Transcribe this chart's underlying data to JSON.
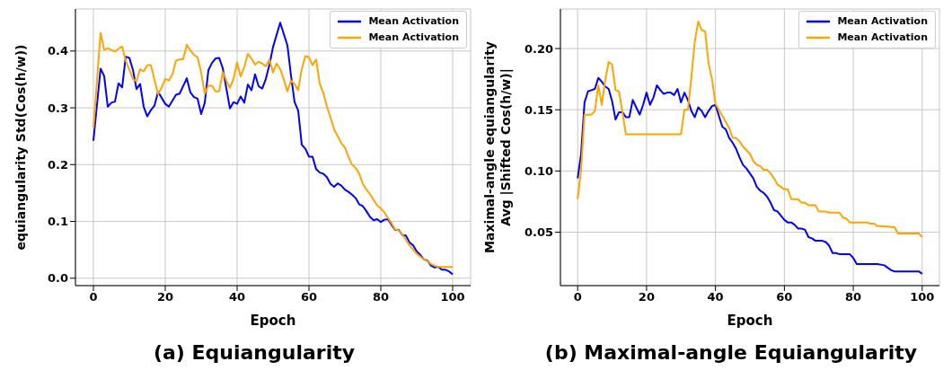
{
  "chart_data": [
    {
      "type": "line",
      "title": "(a) Equiangularity",
      "xlabel": "Epoch",
      "ylabel": "equiangularity Std(Cos(h/w))",
      "xlim": [
        -5,
        105
      ],
      "xticks": [
        0,
        20,
        40,
        60,
        80,
        100
      ],
      "ylim": [
        -0.013,
        0.474
      ],
      "yticks": [
        {
          "value": 0,
          "label": "0.0"
        },
        {
          "value": 0.1,
          "label": "0.1"
        },
        {
          "value": 0.2,
          "label": "0.2"
        },
        {
          "value": 0.3,
          "label": "0.3"
        },
        {
          "value": 0.4,
          "label": "0.4"
        }
      ],
      "grid": true,
      "legend": "top right",
      "line_style": "solid",
      "series": [
        {
          "name": "Mean Activation",
          "color": "#0000ff",
          "x": [
            0,
            2,
            3,
            4,
            5,
            6,
            7,
            8,
            9,
            10,
            11,
            12,
            13,
            14,
            15,
            16,
            17,
            18,
            20,
            21,
            23,
            24,
            26,
            27,
            28,
            29,
            30,
            31,
            32,
            33,
            34,
            35,
            36,
            38,
            39,
            40,
            41,
            42,
            43,
            44,
            45,
            46,
            47,
            48,
            49,
            50,
            52,
            54,
            55,
            56,
            57,
            58,
            59,
            60,
            61,
            62,
            63,
            64,
            65,
            66,
            67,
            68,
            69,
            70,
            71,
            72,
            73,
            74,
            75,
            76,
            77,
            78,
            79,
            80,
            81,
            82,
            83,
            84,
            85,
            86,
            87,
            88,
            89,
            90,
            91,
            92,
            93,
            94,
            95,
            96,
            97,
            98,
            99,
            100
          ],
          "values": [
            0.242,
            0.369,
            0.356,
            0.302,
            0.309,
            0.311,
            0.343,
            0.336,
            0.39,
            0.388,
            0.367,
            0.333,
            0.342,
            0.302,
            0.285,
            0.296,
            0.304,
            0.328,
            0.307,
            0.302,
            0.323,
            0.325,
            0.352,
            0.327,
            0.319,
            0.316,
            0.289,
            0.309,
            0.366,
            0.379,
            0.387,
            0.388,
            0.37,
            0.299,
            0.31,
            0.307,
            0.32,
            0.309,
            0.341,
            0.331,
            0.359,
            0.338,
            0.334,
            0.351,
            0.376,
            0.407,
            0.45,
            0.41,
            0.357,
            0.31,
            0.295,
            0.235,
            0.228,
            0.214,
            0.214,
            0.192,
            0.186,
            0.184,
            0.178,
            0.166,
            0.161,
            0.167,
            0.163,
            0.156,
            0.152,
            0.147,
            0.141,
            0.13,
            0.127,
            0.118,
            0.108,
            0.102,
            0.104,
            0.099,
            0.103,
            0.104,
            0.094,
            0.085,
            0.085,
            0.076,
            0.075,
            0.063,
            0.058,
            0.047,
            0.041,
            0.033,
            0.031,
            0.022,
            0.019,
            0.02,
            0.015,
            0.015,
            0.012,
            0.007
          ]
        },
        {
          "name": "Mean Activation",
          "color": "#ffa500",
          "x": [
            0,
            2,
            3,
            4,
            5,
            6,
            7,
            8,
            9,
            10,
            11,
            12,
            13,
            14,
            15,
            16,
            17,
            18,
            19,
            20,
            21,
            22,
            23,
            24,
            25,
            26,
            27,
            28,
            29,
            30,
            31,
            32,
            33,
            34,
            35,
            36,
            37,
            38,
            39,
            40,
            41,
            42,
            43,
            44,
            45,
            46,
            47,
            48,
            49,
            50,
            51,
            52,
            53,
            54,
            55,
            56,
            57,
            58,
            59,
            60,
            61,
            62,
            63,
            64,
            65,
            66,
            67,
            69,
            70,
            71,
            72,
            73,
            74,
            75,
            76,
            77,
            78,
            79,
            80,
            81,
            82,
            83,
            84,
            85,
            86,
            87,
            88,
            89,
            90,
            91,
            92,
            93,
            94,
            95,
            96,
            98,
            100
          ],
          "values": [
            0.264,
            0.432,
            0.402,
            0.405,
            0.402,
            0.399,
            0.404,
            0.408,
            0.383,
            0.367,
            0.351,
            0.347,
            0.368,
            0.364,
            0.375,
            0.375,
            0.35,
            0.324,
            0.336,
            0.351,
            0.348,
            0.359,
            0.383,
            0.385,
            0.386,
            0.411,
            0.401,
            0.393,
            0.389,
            0.362,
            0.325,
            0.339,
            0.339,
            0.329,
            0.329,
            0.363,
            0.348,
            0.335,
            0.351,
            0.38,
            0.355,
            0.372,
            0.395,
            0.387,
            0.376,
            0.381,
            0.378,
            0.373,
            0.385,
            0.362,
            0.378,
            0.368,
            0.35,
            0.329,
            0.348,
            0.342,
            0.331,
            0.368,
            0.391,
            0.389,
            0.375,
            0.385,
            0.343,
            0.326,
            0.302,
            0.283,
            0.262,
            0.238,
            0.23,
            0.214,
            0.2,
            0.194,
            0.184,
            0.166,
            0.156,
            0.148,
            0.138,
            0.128,
            0.123,
            0.116,
            0.106,
            0.097,
            0.086,
            0.084,
            0.077,
            0.068,
            0.058,
            0.051,
            0.043,
            0.038,
            0.033,
            0.03,
            0.025,
            0.022,
            0.02,
            0.02,
            0.02
          ]
        }
      ]
    },
    {
      "type": "line",
      "title": "(b) Maximal-angle Equiangularity",
      "xlabel": "Epoch",
      "ylabel": "Maximal-angle equiangularity\nAvg |Shifted Cos(h/w)|",
      "xlim": [
        -5,
        105
      ],
      "xticks": [
        0,
        20,
        40,
        60,
        80,
        100
      ],
      "ylim": [
        0.0064,
        0.2323
      ],
      "yticks": [
        {
          "value": 0.05,
          "label": "0.05"
        },
        {
          "value": 0.1,
          "label": "0.10"
        },
        {
          "value": 0.15,
          "label": "0.15"
        },
        {
          "value": 0.2,
          "label": "0.20"
        }
      ],
      "grid": true,
      "legend": "top right",
      "line_style": "solid",
      "series": [
        {
          "name": "Mean Activation",
          "color": "#0000ff",
          "x": [
            0,
            1,
            2,
            3,
            4,
            5,
            6,
            7,
            8,
            9,
            10,
            11,
            12,
            13,
            14,
            15,
            16,
            17,
            18,
            19,
            20,
            21,
            22,
            23,
            24,
            25,
            26,
            27,
            28,
            29,
            30,
            31,
            32,
            33,
            34,
            35,
            36,
            37,
            38,
            39,
            40,
            41,
            42,
            43,
            44,
            45,
            46,
            47,
            48,
            49,
            50,
            51,
            52,
            53,
            54,
            55,
            56,
            57,
            58,
            60,
            61,
            62,
            63,
            64,
            65,
            66,
            67,
            68,
            69,
            71,
            72,
            73,
            74,
            75,
            76,
            79,
            80,
            81,
            87,
            89,
            91,
            92,
            99,
            100
          ],
          "values": [
            0.094,
            0.114,
            0.156,
            0.165,
            0.166,
            0.167,
            0.176,
            0.173,
            0.169,
            0.167,
            0.157,
            0.142,
            0.148,
            0.148,
            0.144,
            0.144,
            0.158,
            0.152,
            0.146,
            0.154,
            0.164,
            0.154,
            0.16,
            0.17,
            0.166,
            0.163,
            0.164,
            0.164,
            0.162,
            0.167,
            0.156,
            0.164,
            0.158,
            0.149,
            0.144,
            0.152,
            0.149,
            0.144,
            0.149,
            0.153,
            0.154,
            0.145,
            0.136,
            0.134,
            0.127,
            0.123,
            0.118,
            0.111,
            0.105,
            0.102,
            0.098,
            0.094,
            0.087,
            0.084,
            0.082,
            0.079,
            0.074,
            0.068,
            0.067,
            0.06,
            0.058,
            0.058,
            0.056,
            0.053,
            0.053,
            0.052,
            0.046,
            0.045,
            0.043,
            0.043,
            0.042,
            0.039,
            0.033,
            0.033,
            0.032,
            0.032,
            0.029,
            0.024,
            0.024,
            0.023,
            0.019,
            0.018,
            0.018,
            0.016
          ]
        },
        {
          "name": "Mean Activation",
          "color": "#ffa500",
          "x": [
            0,
            1,
            2,
            3,
            4,
            5,
            6,
            7,
            8,
            9,
            10,
            11,
            12,
            13,
            14,
            30,
            31,
            32,
            33,
            34,
            35,
            36,
            37,
            38,
            39,
            40,
            41,
            42,
            43,
            44,
            45,
            46,
            47,
            48,
            49,
            50,
            51,
            52,
            53,
            54,
            55,
            56,
            57,
            58,
            59,
            60,
            61,
            62,
            64,
            65,
            66,
            67,
            69,
            70,
            72,
            73,
            76,
            77,
            78,
            79,
            84,
            85,
            86,
            87,
            88,
            92,
            93,
            99,
            100
          ],
          "values": [
            0.077,
            0.101,
            0.146,
            0.146,
            0.146,
            0.149,
            0.17,
            0.154,
            0.174,
            0.189,
            0.187,
            0.166,
            0.165,
            0.148,
            0.13,
            0.13,
            0.15,
            0.15,
            0.176,
            0.206,
            0.222,
            0.215,
            0.214,
            0.188,
            0.175,
            0.155,
            0.15,
            0.145,
            0.14,
            0.135,
            0.127,
            0.127,
            0.124,
            0.12,
            0.117,
            0.114,
            0.108,
            0.105,
            0.104,
            0.101,
            0.101,
            0.098,
            0.094,
            0.089,
            0.087,
            0.085,
            0.085,
            0.077,
            0.077,
            0.074,
            0.074,
            0.072,
            0.072,
            0.067,
            0.067,
            0.066,
            0.066,
            0.062,
            0.061,
            0.058,
            0.058,
            0.057,
            0.057,
            0.055,
            0.055,
            0.054,
            0.049,
            0.049,
            0.046
          ]
        }
      ]
    }
  ]
}
